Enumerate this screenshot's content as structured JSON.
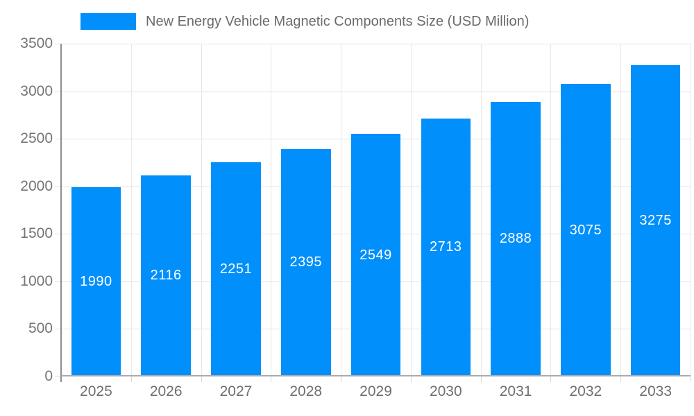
{
  "legend": {
    "label": "New Energy Vehicle Magnetic Components Size (USD Million)",
    "marker_color": "#008FFB",
    "position": "top-left"
  },
  "chart_data": {
    "type": "bar",
    "title": "New Energy Vehicle Magnetic Components Size (USD Million)",
    "series": [
      {
        "name": "New Energy Vehicle Magnetic Components Size (USD Million)",
        "values": [
          1990,
          2116,
          2251,
          2395,
          2549,
          2713,
          2888,
          3075,
          3275
        ]
      }
    ],
    "categories": [
      "2025",
      "2026",
      "2027",
      "2028",
      "2029",
      "2030",
      "2031",
      "2032",
      "2033"
    ],
    "xlabel": "",
    "ylabel": "",
    "ylim": [
      0,
      3500
    ],
    "y_ticks": [
      0,
      500,
      1000,
      1500,
      2000,
      2500,
      3000,
      3500
    ],
    "grid": true,
    "legend_position": "top",
    "bar_color": "#008FFB",
    "bar_label_color": "#ffffff",
    "axis_label_color": "#757575",
    "gridline_color": "#e4e4e4"
  }
}
